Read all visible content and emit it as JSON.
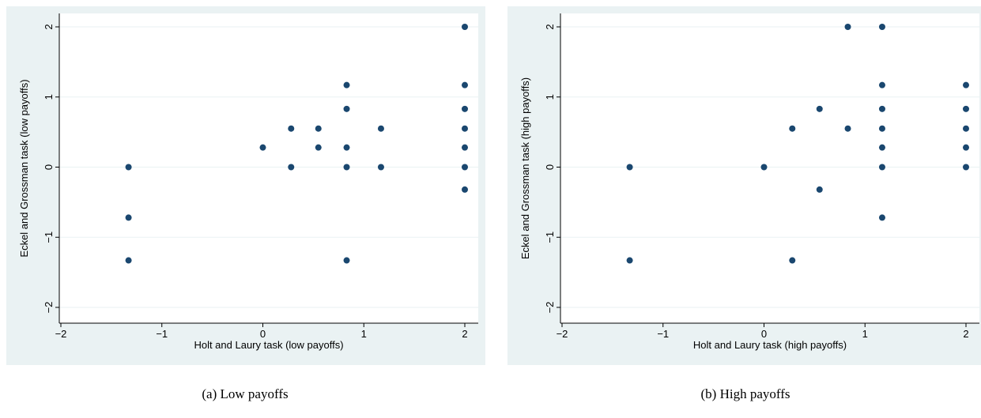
{
  "chart_data": [
    {
      "type": "scatter",
      "xlabel": "Holt and Laury task (low payoffs)",
      "ylabel": "Eckel and Grossman task (low payoffs)",
      "xlim": [
        -2,
        2
      ],
      "ylim": [
        -2,
        2
      ],
      "xticks": [
        -2,
        -1,
        0,
        1,
        2
      ],
      "yticks": [
        -2,
        -1,
        0,
        1,
        2
      ],
      "xtick_labels": [
        "−2",
        "−1",
        "0",
        "1",
        "2"
      ],
      "ytick_labels": [
        "−2",
        "−1",
        "0",
        "1",
        "2"
      ],
      "grid": "horizontal",
      "marker_color": "#1a476f",
      "points": [
        {
          "x": -1.33,
          "y": 0
        },
        {
          "x": -1.33,
          "y": -0.72
        },
        {
          "x": -1.33,
          "y": -1.33
        },
        {
          "x": 0,
          "y": 0.28
        },
        {
          "x": 0.28,
          "y": 0.55
        },
        {
          "x": 0.28,
          "y": 0
        },
        {
          "x": 0.55,
          "y": 0.55
        },
        {
          "x": 0.55,
          "y": 0.28
        },
        {
          "x": 0.83,
          "y": 1.17
        },
        {
          "x": 0.83,
          "y": 0.83
        },
        {
          "x": 0.83,
          "y": 0.28
        },
        {
          "x": 0.83,
          "y": 0
        },
        {
          "x": 0.83,
          "y": -1.33
        },
        {
          "x": 1.17,
          "y": 0.55
        },
        {
          "x": 1.17,
          "y": 0
        },
        {
          "x": 2,
          "y": 2
        },
        {
          "x": 2,
          "y": 1.17
        },
        {
          "x": 2,
          "y": 0.83
        },
        {
          "x": 2,
          "y": 0.55
        },
        {
          "x": 2,
          "y": 0.28
        },
        {
          "x": 2,
          "y": 0
        },
        {
          "x": 2,
          "y": -0.32
        }
      ]
    },
    {
      "type": "scatter",
      "xlabel": "Holt and Laury task (high payoffs)",
      "ylabel": "Eckel and Grossman task (high payoffs)",
      "xlim": [
        -2,
        2
      ],
      "ylim": [
        -2,
        2
      ],
      "xticks": [
        -2,
        -1,
        0,
        1,
        2
      ],
      "yticks": [
        -2,
        -1,
        0,
        1,
        2
      ],
      "xtick_labels": [
        "−2",
        "−1",
        "0",
        "1",
        "2"
      ],
      "ytick_labels": [
        "−2",
        "−1",
        "0",
        "1",
        "2"
      ],
      "grid": "horizontal",
      "marker_color": "#1a476f",
      "points": [
        {
          "x": -1.33,
          "y": 0
        },
        {
          "x": -1.33,
          "y": -1.33
        },
        {
          "x": 0,
          "y": 0
        },
        {
          "x": 0.28,
          "y": 0.55
        },
        {
          "x": 0.28,
          "y": -1.33
        },
        {
          "x": 0.55,
          "y": 0.83
        },
        {
          "x": 0.55,
          "y": -0.32
        },
        {
          "x": 0.83,
          "y": 2
        },
        {
          "x": 0.83,
          "y": 0.55
        },
        {
          "x": 1.17,
          "y": 2
        },
        {
          "x": 1.17,
          "y": 1.17
        },
        {
          "x": 1.17,
          "y": 0.83
        },
        {
          "x": 1.17,
          "y": 0.55
        },
        {
          "x": 1.17,
          "y": 0.28
        },
        {
          "x": 1.17,
          "y": 0
        },
        {
          "x": 1.17,
          "y": -0.72
        },
        {
          "x": 2,
          "y": 1.17
        },
        {
          "x": 2,
          "y": 0.83
        },
        {
          "x": 2,
          "y": 0.55
        },
        {
          "x": 2,
          "y": 0.28
        },
        {
          "x": 2,
          "y": 0
        }
      ]
    }
  ],
  "captions": {
    "a": "(a) Low payoffs",
    "b": "(b) High payoffs"
  }
}
